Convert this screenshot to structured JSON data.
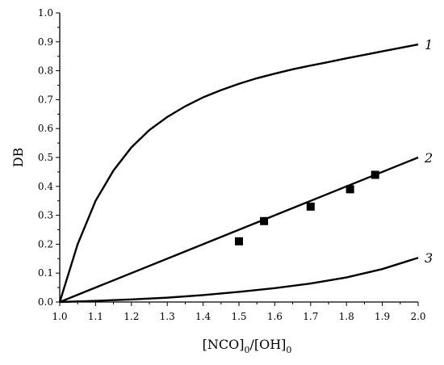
{
  "chart_data": {
    "type": "line",
    "title": "",
    "xlabel": "[NCO]0/[OH]0",
    "xlabel_parts": [
      {
        "text": "[NCO]",
        "sub": false
      },
      {
        "text": "0",
        "sub": true
      },
      {
        "text": "/[OH]",
        "sub": false
      },
      {
        "text": "0",
        "sub": true
      }
    ],
    "ylabel": "DB",
    "xlim": [
      1.0,
      2.0
    ],
    "ylim": [
      0.0,
      1.0
    ],
    "x_ticks": [
      "1.0",
      "1.1",
      "1.2",
      "1.3",
      "1.4",
      "1.5",
      "1.6",
      "1.7",
      "1.8",
      "1.9",
      "2.0"
    ],
    "y_ticks": [
      "0.0",
      "0.1",
      "0.2",
      "0.3",
      "0.4",
      "0.5",
      "0.6",
      "0.7",
      "0.8",
      "0.9",
      "1.0"
    ],
    "grid": false,
    "series": [
      {
        "name": "1",
        "style": "line",
        "x": [
          1.0,
          1.05,
          1.1,
          1.15,
          1.2,
          1.25,
          1.3,
          1.35,
          1.4,
          1.45,
          1.5,
          1.55,
          1.6,
          1.65,
          1.7,
          1.75,
          1.8,
          1.85,
          1.9,
          1.95,
          2.0
        ],
        "y": [
          0.0,
          0.2,
          0.35,
          0.455,
          0.535,
          0.595,
          0.64,
          0.677,
          0.708,
          0.733,
          0.755,
          0.774,
          0.79,
          0.805,
          0.818,
          0.83,
          0.843,
          0.855,
          0.867,
          0.879,
          0.891
        ]
      },
      {
        "name": "2",
        "style": "line",
        "x": [
          1.0,
          2.0
        ],
        "y": [
          0.0,
          0.5
        ]
      },
      {
        "name": "3",
        "style": "line",
        "x": [
          1.0,
          1.1,
          1.2,
          1.3,
          1.4,
          1.5,
          1.6,
          1.7,
          1.8,
          1.9,
          2.0
        ],
        "y": [
          0.0,
          0.004,
          0.009,
          0.015,
          0.024,
          0.035,
          0.048,
          0.064,
          0.085,
          0.114,
          0.153
        ]
      },
      {
        "name": "",
        "style": "markers",
        "x": [
          1.5,
          1.57,
          1.7,
          1.81,
          1.88
        ],
        "y": [
          0.21,
          0.28,
          0.33,
          0.39,
          0.44
        ]
      }
    ]
  }
}
